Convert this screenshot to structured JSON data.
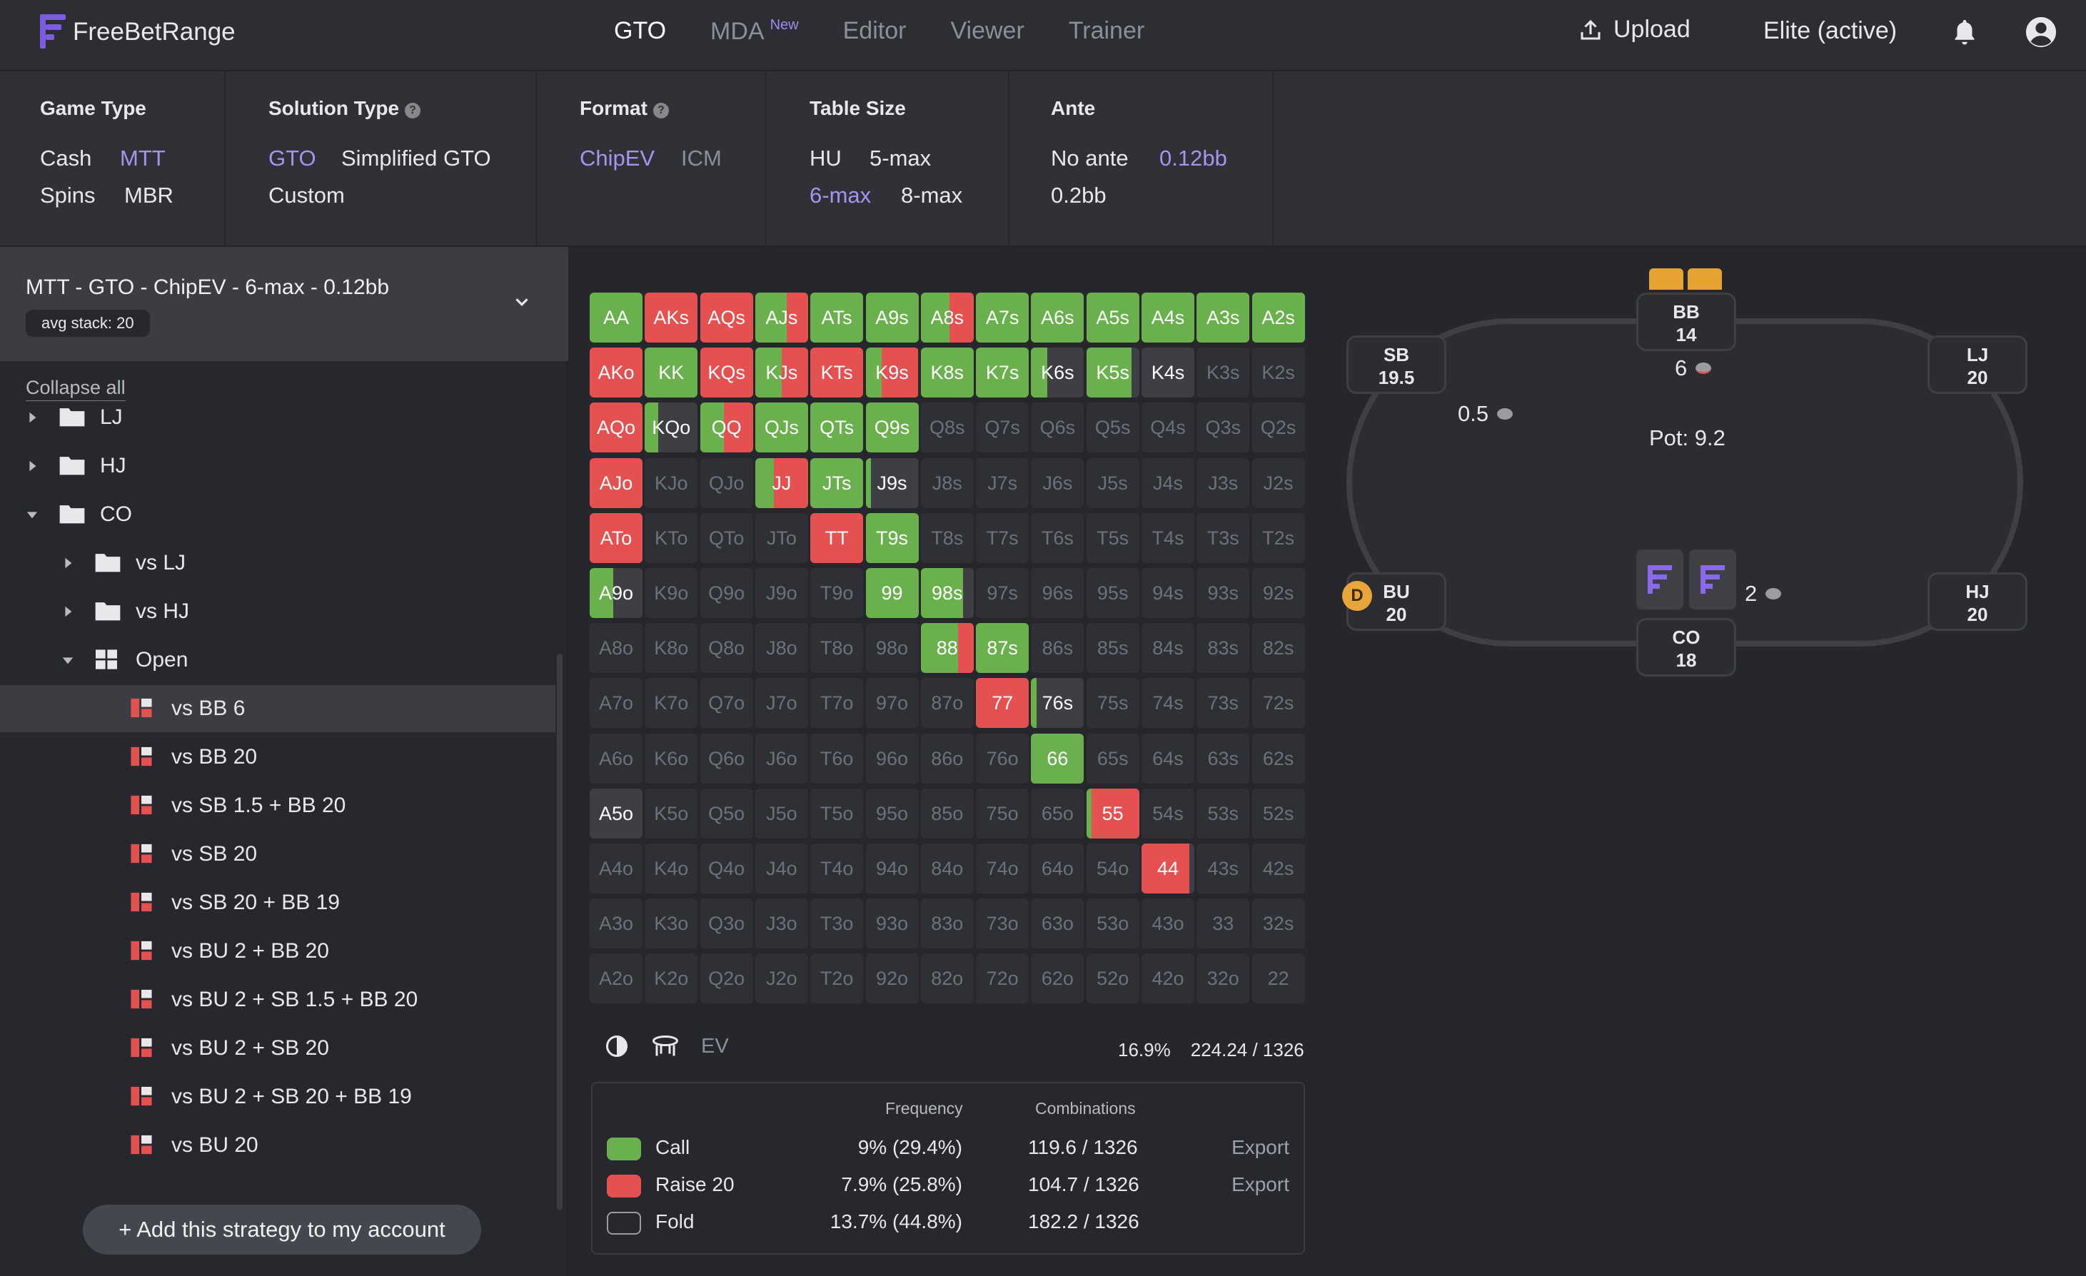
{
  "app": {
    "name": "FreeBetRange"
  },
  "nav": {
    "items": [
      {
        "label": "GTO",
        "active": true
      },
      {
        "label": "MDA",
        "badge": "New"
      },
      {
        "label": "Editor"
      },
      {
        "label": "Viewer"
      },
      {
        "label": "Trainer"
      }
    ],
    "upload": "Upload",
    "plan": "Elite (active)"
  },
  "filters": {
    "game_type": {
      "title": "Game Type",
      "options": [
        "Cash",
        "MTT",
        "Spins",
        "MBR"
      ],
      "selected": "MTT"
    },
    "solution_type": {
      "title": "Solution Type",
      "options": [
        "GTO",
        "Simplified GTO",
        "Custom"
      ],
      "selected": "GTO"
    },
    "format": {
      "title": "Format",
      "options": [
        "ChipEV",
        "ICM"
      ],
      "selected": "ChipEV"
    },
    "table_size": {
      "title": "Table Size",
      "options": [
        "HU",
        "5-max",
        "6-max",
        "8-max"
      ],
      "selected": "6-max"
    },
    "ante": {
      "title": "Ante",
      "options": [
        "No ante",
        "0.12bb",
        "0.2bb"
      ],
      "selected": "0.12bb"
    }
  },
  "sidebar": {
    "title": "MTT - GTO - ChipEV - 6-max - 0.12bb",
    "badge": "avg stack: 20",
    "collapse": "Collapse all",
    "tree": [
      {
        "label": "LJ",
        "type": "folder",
        "level": 0,
        "open": false
      },
      {
        "label": "HJ",
        "type": "folder",
        "level": 0,
        "open": false
      },
      {
        "label": "CO",
        "type": "folder",
        "level": 0,
        "open": true
      },
      {
        "label": "vs LJ",
        "type": "folder",
        "level": 1,
        "open": false
      },
      {
        "label": "vs HJ",
        "type": "folder",
        "level": 1,
        "open": false
      },
      {
        "label": "Open",
        "type": "grid",
        "level": 1,
        "open": true
      },
      {
        "label": "vs BB 6",
        "type": "strategy",
        "level": 2,
        "selected": true
      },
      {
        "label": "vs BB 20",
        "type": "strategy",
        "level": 2
      },
      {
        "label": "vs SB 1.5 + BB 20",
        "type": "strategy",
        "level": 2
      },
      {
        "label": "vs SB 20",
        "type": "strategy",
        "level": 2
      },
      {
        "label": "vs SB 20 + BB 19",
        "type": "strategy",
        "level": 2
      },
      {
        "label": "vs BU 2 + BB 20",
        "type": "strategy",
        "level": 2
      },
      {
        "label": "vs BU 2 + SB 1.5 + BB 20",
        "type": "strategy",
        "level": 2
      },
      {
        "label": "vs BU 2 + SB 20",
        "type": "strategy",
        "level": 2
      },
      {
        "label": "vs BU 2 + SB 20 + BB 19",
        "type": "strategy",
        "level": 2
      },
      {
        "label": "vs BU 20",
        "type": "strategy",
        "level": 2
      }
    ],
    "add_button": "+ Add this strategy to my account"
  },
  "matrix": {
    "colors": {
      "call": "#6ab04c",
      "raise": "#e55050",
      "fold": "#2e3035",
      "muted": "#3d3f45"
    },
    "ranks": [
      "A",
      "K",
      "Q",
      "J",
      "T",
      "9",
      "8",
      "7",
      "6",
      "5",
      "4",
      "3",
      "2"
    ],
    "hands": {
      "AA": {
        "c": 1
      },
      "AKs": {
        "r": 1
      },
      "AQs": {
        "r": 1
      },
      "AJs": {
        "c": 0.6,
        "r": 0.4
      },
      "ATs": {
        "c": 1
      },
      "A9s": {
        "c": 1
      },
      "A8s": {
        "c": 0.55,
        "r": 0.45
      },
      "A7s": {
        "c": 1
      },
      "A6s": {
        "c": 1
      },
      "A5s": {
        "c": 1
      },
      "A4s": {
        "c": 1
      },
      "A3s": {
        "c": 1
      },
      "A2s": {
        "c": 1
      },
      "AKo": {
        "r": 1
      },
      "KK": {
        "c": 1
      },
      "KQs": {
        "r": 1
      },
      "KJs": {
        "c": 0.5,
        "r": 0.5
      },
      "KTs": {
        "r": 1
      },
      "K9s": {
        "c": 0.3,
        "r": 0.7
      },
      "K8s": {
        "c": 1
      },
      "K7s": {
        "c": 1
      },
      "K6s": {
        "c": 0.3
      },
      "K5s": {
        "c": 0.85
      },
      "K4s": {
        "g": 1
      },
      "AQo": {
        "r": 1
      },
      "KQo": {
        "c": 0.25,
        "g": 0.75
      },
      "QQ": {
        "c": 0.45,
        "r": 0.55
      },
      "QJs": {
        "c": 1
      },
      "QTs": {
        "c": 1
      },
      "Q9s": {
        "c": 1
      },
      "AJo": {
        "r": 1
      },
      "JJ": {
        "c": 0.35,
        "r": 0.65
      },
      "JTs": {
        "c": 1
      },
      "J9s": {
        "c": 0.1,
        "g": 0.9
      },
      "ATo": {
        "r": 1
      },
      "TT": {
        "r": 1
      },
      "T9s": {
        "c": 1
      },
      "A9o": {
        "c": 0.45,
        "g": 0.55
      },
      "99": {
        "c": 1
      },
      "98s": {
        "c": 0.8,
        "g": 0.2
      },
      "88": {
        "c": 0.7,
        "r": 0.3
      },
      "87s": {
        "c": 1
      },
      "77": {
        "r": 1
      },
      "76s": {
        "c": 0.1,
        "g": 0.9
      },
      "66": {
        "c": 1
      },
      "A5o": {
        "g": 1
      },
      "55": {
        "c": 0.1,
        "r": 0.9
      },
      "44": {
        "r": 0.9,
        "g": 0.1
      }
    }
  },
  "tools": {
    "ev_label": "EV",
    "percent": "16.9%",
    "combos": "224.24 / 1326"
  },
  "legend": {
    "headers": {
      "frequency": "Frequency",
      "combinations": "Combinations"
    },
    "rows": [
      {
        "name": "Call",
        "frequency": "9% (29.4%)",
        "combos": "119.6 / 1326",
        "export": "Export",
        "color": "#6ab04c"
      },
      {
        "name": "Raise 20",
        "frequency": "7.9% (25.8%)",
        "combos": "104.7 / 1326",
        "export": "Export",
        "color": "#e55050"
      },
      {
        "name": "Fold",
        "frequency": "13.7% (44.8%)",
        "combos": "182.2 / 1326",
        "export": "",
        "color": "#26282d"
      }
    ]
  },
  "table": {
    "pot": "Pot: 9.2",
    "dealer": "D",
    "seats": [
      {
        "id": "bb",
        "pos": "BB",
        "stack": "14"
      },
      {
        "id": "sb",
        "pos": "SB",
        "stack": "19.5"
      },
      {
        "id": "lj",
        "pos": "LJ",
        "stack": "20"
      },
      {
        "id": "bu",
        "pos": "BU",
        "stack": "20"
      },
      {
        "id": "hj",
        "pos": "HJ",
        "stack": "20"
      },
      {
        "id": "co",
        "pos": "CO",
        "stack": "18"
      }
    ],
    "bets": {
      "bb": "6",
      "sb": "0.5",
      "co": "2"
    }
  }
}
